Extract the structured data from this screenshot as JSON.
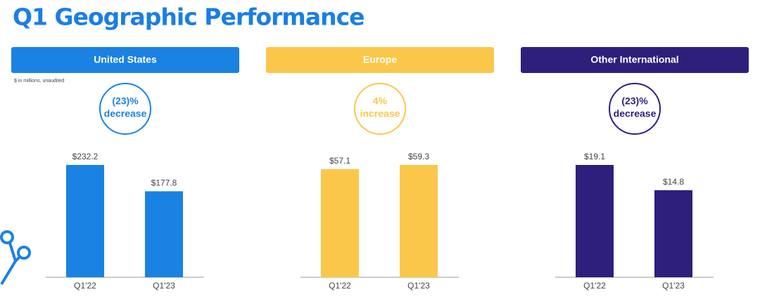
{
  "title": "Q1 Geographic Performance",
  "note": "$ in millions, unaudited",
  "chart_data": [
    {
      "type": "bar",
      "title": "United States",
      "annotation": [
        "(23)%",
        "decrease"
      ],
      "color": "#1a82e2",
      "categories": [
        "Q1'22",
        "Q1'23"
      ],
      "values": [
        232.2,
        177.8
      ],
      "value_labels": [
        "$232.2",
        "$177.8"
      ]
    },
    {
      "type": "bar",
      "title": "Europe",
      "annotation": [
        "4%",
        "increase"
      ],
      "color": "#fbc74b",
      "categories": [
        "Q1'22",
        "Q1'23"
      ],
      "values": [
        57.1,
        59.3
      ],
      "value_labels": [
        "$57.1",
        "$59.3"
      ]
    },
    {
      "type": "bar",
      "title": "Other International",
      "annotation": [
        "(23)%",
        "decrease"
      ],
      "color": "#2e1f7d",
      "categories": [
        "Q1'22",
        "Q1'23"
      ],
      "values": [
        19.1,
        14.8
      ],
      "value_labels": [
        "$19.1",
        "$14.8"
      ]
    }
  ]
}
